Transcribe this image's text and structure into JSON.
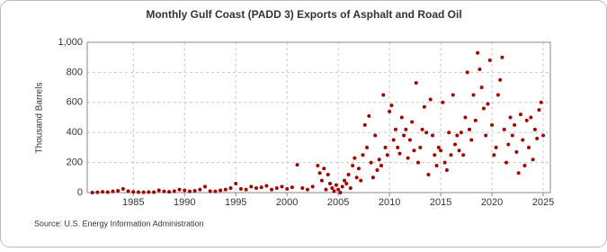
{
  "chart_data": {
    "type": "scatter",
    "title": "Monthly Gulf Coast (PADD 3) Exports of Asphalt and Road Oil",
    "y_label": "Thousand Barrels",
    "source": "Source: U.S. Energy Information Administration",
    "color": "#a00000",
    "grid": true,
    "xlim": [
      1980.5,
      2025.7
    ],
    "ylim": [
      0,
      1000
    ],
    "xticks": [
      1985,
      1990,
      1995,
      2000,
      2005,
      2010,
      2015,
      2020,
      2025
    ],
    "yticks": [
      0,
      200,
      400,
      600,
      800,
      {
        "value": 1000,
        "label": "1,000"
      }
    ],
    "x": [
      1981,
      1981.5,
      1982,
      1982.5,
      1983,
      1983.5,
      1984,
      1984.5,
      1985,
      1985.5,
      1986,
      1986.5,
      1987,
      1987.5,
      1988,
      1988.5,
      1989,
      1989.5,
      1990,
      1990.5,
      1991,
      1991.5,
      1992,
      1992.5,
      1993,
      1993.5,
      1994,
      1994.5,
      1995,
      1995.5,
      1996,
      1996.5,
      1997,
      1997.5,
      1998,
      1998.5,
      1999,
      1999.5,
      2000,
      2000.5,
      2001,
      2001.5,
      2002,
      2002.5,
      2003,
      2003.2,
      2003.4,
      2003.6,
      2003.8,
      2004,
      2004.2,
      2004.4,
      2004.6,
      2004.8,
      2005,
      2005.2,
      2005.4,
      2005.6,
      2005.8,
      2006,
      2006.2,
      2006.4,
      2006.6,
      2006.8,
      2007,
      2007.2,
      2007.4,
      2007.6,
      2007.8,
      2008,
      2008.2,
      2008.4,
      2008.6,
      2008.8,
      2009,
      2009.2,
      2009.4,
      2009.6,
      2009.8,
      2010,
      2010.2,
      2010.4,
      2010.6,
      2010.8,
      2011,
      2011.2,
      2011.4,
      2011.6,
      2011.8,
      2012,
      2012.2,
      2012.4,
      2012.6,
      2012.8,
      2013,
      2013.2,
      2013.4,
      2013.6,
      2013.8,
      2014,
      2014.2,
      2014.4,
      2014.6,
      2014.8,
      2015,
      2015.2,
      2015.4,
      2015.6,
      2015.8,
      2016,
      2016.2,
      2016.4,
      2016.6,
      2016.8,
      2017,
      2017.2,
      2017.4,
      2017.6,
      2017.8,
      2018,
      2018.2,
      2018.4,
      2018.6,
      2018.8,
      2019,
      2019.2,
      2019.4,
      2019.6,
      2019.8,
      2020,
      2020.2,
      2020.4,
      2020.6,
      2020.8,
      2021,
      2021.2,
      2021.4,
      2021.6,
      2021.8,
      2022,
      2022.2,
      2022.4,
      2022.6,
      2022.8,
      2023,
      2023.2,
      2023.4,
      2023.6,
      2023.8,
      2024,
      2024.2,
      2024.4,
      2024.6,
      2024.8,
      2025
    ],
    "values": [
      0,
      2,
      5,
      3,
      8,
      12,
      25,
      10,
      5,
      3,
      2,
      4,
      3,
      15,
      8,
      5,
      10,
      20,
      15,
      8,
      12,
      20,
      40,
      10,
      8,
      15,
      20,
      30,
      60,
      25,
      20,
      40,
      30,
      35,
      45,
      20,
      30,
      40,
      25,
      35,
      185,
      30,
      20,
      40,
      180,
      130,
      80,
      160,
      20,
      120,
      60,
      30,
      10,
      50,
      20,
      0,
      40,
      80,
      60,
      120,
      30,
      180,
      230,
      100,
      160,
      80,
      250,
      450,
      300,
      510,
      200,
      100,
      380,
      150,
      220,
      180,
      650,
      300,
      250,
      540,
      580,
      350,
      420,
      300,
      260,
      500,
      380,
      420,
      230,
      350,
      470,
      280,
      730,
      200,
      300,
      420,
      570,
      400,
      120,
      620,
      380,
      250,
      180,
      300,
      280,
      600,
      200,
      150,
      400,
      250,
      650,
      320,
      380,
      280,
      400,
      250,
      500,
      800,
      420,
      350,
      650,
      480,
      930,
      820,
      700,
      560,
      380,
      590,
      880,
      450,
      250,
      300,
      650,
      750,
      900,
      420,
      200,
      320,
      500,
      380,
      450,
      270,
      130,
      520,
      350,
      180,
      480,
      300,
      500,
      220,
      420,
      360,
      550,
      600,
      380
    ]
  }
}
